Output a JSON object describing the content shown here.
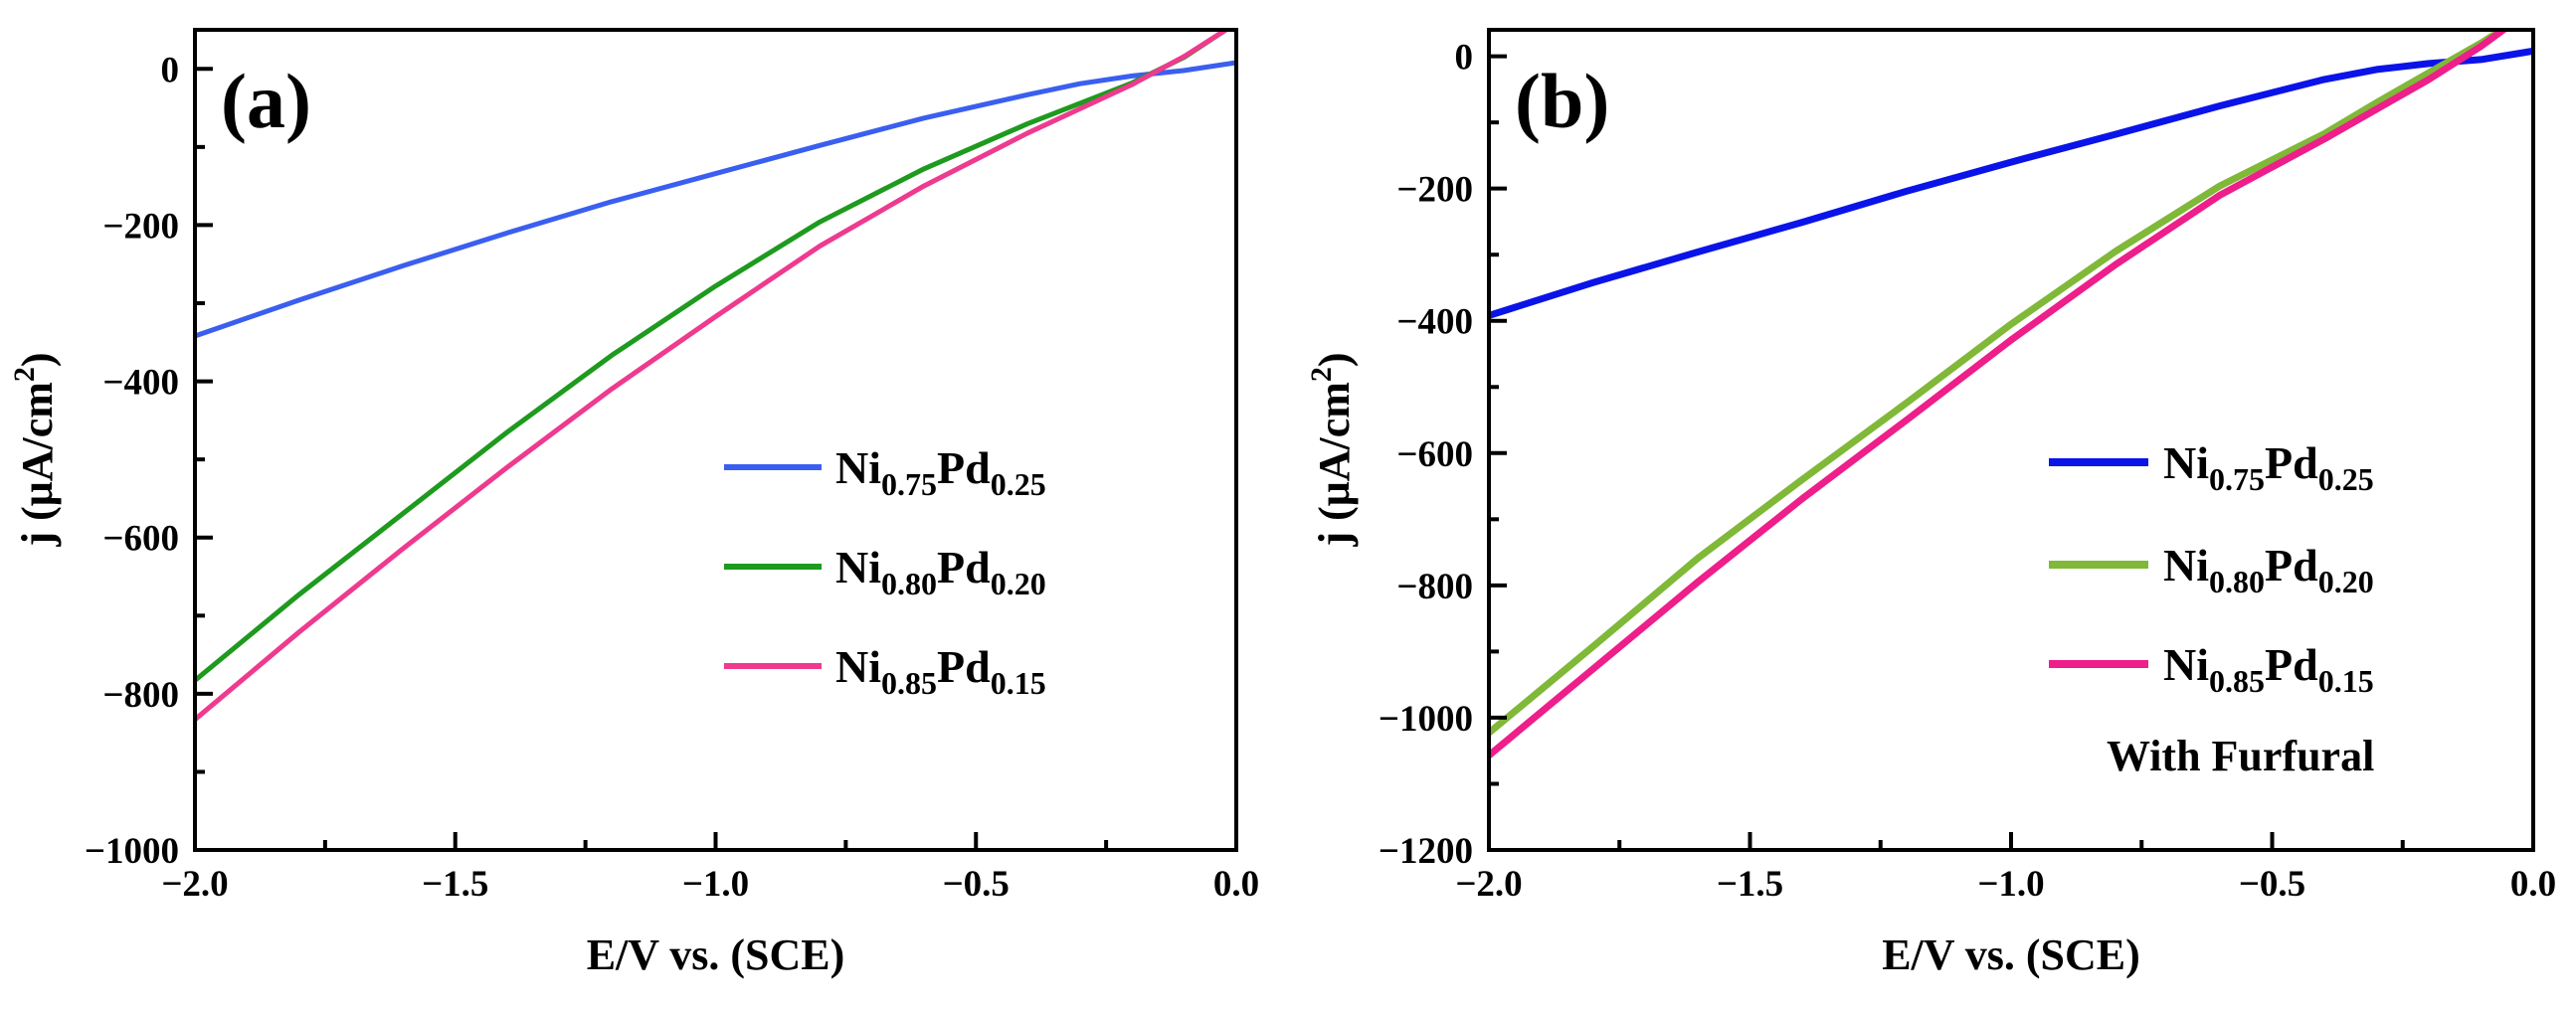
{
  "chart_data": [
    {
      "type": "line",
      "panel_label": "(a)",
      "xlabel": "E/V vs. (SCE)",
      "ylabel": "j (μA/cm",
      "ylabel_sup": "2",
      "ylabel_close": ")",
      "xlim": [
        -2.0,
        0.0
      ],
      "ylim": [
        -1000,
        50
      ],
      "xticks": [
        -2.0,
        -1.5,
        -1.0,
        -0.5,
        0.0
      ],
      "xtick_labels": [
        "−2.0",
        "−1.5",
        "−1.0",
        "−0.5",
        "0.0"
      ],
      "yticks": [
        0,
        -200,
        -400,
        -600,
        -800,
        -1000
      ],
      "ytick_labels": [
        "0",
        "−200",
        "−400",
        "−600",
        "−800",
        "−1000"
      ],
      "legend_position": "center-right",
      "series": [
        {
          "name": "Ni0.75Pd0.25",
          "label_parts": [
            {
              "t": "Ni"
            },
            {
              "t": "0.75",
              "sub": true
            },
            {
              "t": "Pd"
            },
            {
              "t": "0.25",
              "sub": true
            }
          ],
          "color": "#3a5ff0",
          "width": 5,
          "x": [
            -2.0,
            -1.8,
            -1.6,
            -1.4,
            -1.2,
            -1.0,
            -0.8,
            -0.6,
            -0.4,
            -0.3,
            -0.2,
            -0.1,
            0.0
          ],
          "y": [
            -342,
            -296,
            -252,
            -210,
            -170,
            -134,
            -98,
            -63,
            -33,
            -19,
            -9,
            -2,
            8
          ]
        },
        {
          "name": "Ni0.80Pd0.20",
          "label_parts": [
            {
              "t": "Ni"
            },
            {
              "t": "0.80",
              "sub": true
            },
            {
              "t": "Pd"
            },
            {
              "t": "0.20",
              "sub": true
            }
          ],
          "color": "#1e9a1e",
          "width": 5,
          "x": [
            -2.0,
            -1.8,
            -1.6,
            -1.4,
            -1.2,
            -1.0,
            -0.8,
            -0.6,
            -0.4,
            -0.3,
            -0.2,
            -0.1,
            -0.02
          ],
          "y": [
            -783,
            -673,
            -569,
            -465,
            -367,
            -278,
            -196,
            -128,
            -70,
            -44,
            -18,
            15,
            50
          ]
        },
        {
          "name": "Ni0.85Pd0.15",
          "label_parts": [
            {
              "t": "Ni"
            },
            {
              "t": "0.85",
              "sub": true
            },
            {
              "t": "Pd"
            },
            {
              "t": "0.15",
              "sub": true
            }
          ],
          "color": "#ee3a8f",
          "width": 5,
          "x": [
            -2.0,
            -1.8,
            -1.6,
            -1.4,
            -1.2,
            -1.0,
            -0.8,
            -0.6,
            -0.4,
            -0.3,
            -0.2,
            -0.1,
            -0.02
          ],
          "y": [
            -833,
            -721,
            -614,
            -510,
            -410,
            -317,
            -227,
            -150,
            -82,
            -51,
            -20,
            16,
            50
          ]
        }
      ]
    },
    {
      "type": "line",
      "panel_label": "(b)",
      "xlabel": "E/V vs. (SCE)",
      "ylabel": "j (μA/cm",
      "ylabel_sup": "2",
      "ylabel_close": ")",
      "annotation": "With Furfural",
      "xlim": [
        -2.0,
        0.0
      ],
      "ylim": [
        -1200,
        40
      ],
      "xticks": [
        -2.0,
        -1.5,
        -1.0,
        -0.5,
        0.0
      ],
      "xtick_labels": [
        "−2.0",
        "−1.5",
        "−1.0",
        "−0.5",
        "0.0"
      ],
      "yticks": [
        0,
        -200,
        -400,
        -600,
        -800,
        -1000,
        -1200
      ],
      "ytick_labels": [
        "0",
        "−200",
        "−400",
        "−600",
        "−800",
        "−1000",
        "−1200"
      ],
      "legend_position": "center-right",
      "series": [
        {
          "name": "Ni0.75Pd0.25",
          "label_parts": [
            {
              "t": "Ni"
            },
            {
              "t": "0.75",
              "sub": true
            },
            {
              "t": "Pd"
            },
            {
              "t": "0.25",
              "sub": true
            }
          ],
          "color": "#0a14e8",
          "width": 7,
          "x": [
            -2.0,
            -1.8,
            -1.6,
            -1.4,
            -1.2,
            -1.0,
            -0.8,
            -0.6,
            -0.4,
            -0.3,
            -0.2,
            -0.1,
            0.0
          ],
          "y": [
            -392,
            -342,
            -296,
            -251,
            -204,
            -160,
            -118,
            -75,
            -35,
            -20,
            -11,
            -5,
            8
          ]
        },
        {
          "name": "Ni0.80Pd0.20",
          "label_parts": [
            {
              "t": "Ni"
            },
            {
              "t": "0.80",
              "sub": true
            },
            {
              "t": "Pd"
            },
            {
              "t": "0.20",
              "sub": true
            }
          ],
          "color": "#80b838",
          "width": 7,
          "x": [
            -2.0,
            -1.8,
            -1.6,
            -1.4,
            -1.2,
            -1.0,
            -0.8,
            -0.6,
            -0.4,
            -0.3,
            -0.2,
            -0.1,
            -0.04
          ],
          "y": [
            -1023,
            -892,
            -759,
            -640,
            -524,
            -405,
            -295,
            -196,
            -117,
            -70,
            -25,
            20,
            50
          ]
        },
        {
          "name": "Ni0.85Pd0.15",
          "label_parts": [
            {
              "t": "Ni"
            },
            {
              "t": "0.85",
              "sub": true
            },
            {
              "t": "Pd"
            },
            {
              "t": "0.15",
              "sub": true
            }
          ],
          "color": "#ee1e8a",
          "width": 7,
          "x": [
            -2.0,
            -1.8,
            -1.6,
            -1.4,
            -1.2,
            -1.0,
            -0.8,
            -0.6,
            -0.4,
            -0.3,
            -0.2,
            -0.1,
            -0.04
          ],
          "y": [
            -1057,
            -926,
            -795,
            -669,
            -550,
            -429,
            -315,
            -210,
            -125,
            -80,
            -35,
            15,
            50
          ]
        }
      ]
    }
  ]
}
